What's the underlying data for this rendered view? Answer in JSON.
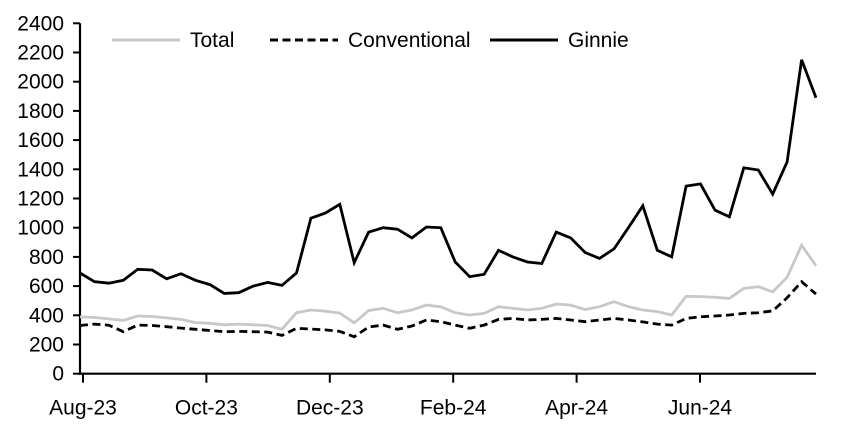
{
  "chart_data": {
    "type": "line",
    "title": "",
    "x_axis": {
      "tick_labels": [
        "Aug-23",
        "Oct-23",
        "Dec-23",
        "Feb-24",
        "Apr-24",
        "Jun-24"
      ],
      "unit": "week",
      "points_count": 52
    },
    "y_axis": {
      "ylim": [
        0,
        2400
      ],
      "tick_step": 200,
      "tick_labels": [
        "0",
        "200",
        "400",
        "600",
        "800",
        "1000",
        "1200",
        "1400",
        "1600",
        "1800",
        "2000",
        "2200",
        "2400"
      ]
    },
    "grid": false,
    "legend_position": "top",
    "series": [
      {
        "name": "Total",
        "style": "solid",
        "color": "#c8c8c8",
        "values": [
          390,
          385,
          375,
          365,
          395,
          392,
          382,
          372,
          350,
          345,
          335,
          340,
          335,
          330,
          305,
          418,
          436,
          428,
          415,
          348,
          432,
          448,
          418,
          436,
          470,
          458,
          418,
          402,
          413,
          459,
          448,
          436,
          448,
          477,
          470,
          440,
          459,
          493,
          459,
          436,
          425,
          402,
          530,
          528,
          523,
          516,
          585,
          596,
          560,
          660,
          880,
          740
        ]
      },
      {
        "name": "Conventional",
        "style": "dashed",
        "color": "#000000",
        "values": [
          330,
          340,
          332,
          288,
          333,
          330,
          322,
          312,
          304,
          296,
          288,
          290,
          288,
          285,
          262,
          310,
          306,
          300,
          290,
          253,
          320,
          333,
          304,
          327,
          368,
          356,
          333,
          311,
          333,
          372,
          379,
          368,
          372,
          379,
          368,
          356,
          368,
          379,
          368,
          355,
          340,
          333,
          379,
          390,
          395,
          402,
          413,
          418,
          430,
          520,
          630,
          545
        ]
      },
      {
        "name": "Ginnie",
        "style": "solid",
        "color": "#000000",
        "values": [
          690,
          630,
          620,
          640,
          715,
          710,
          650,
          685,
          640,
          610,
          550,
          555,
          600,
          625,
          605,
          690,
          1065,
          1100,
          1160,
          760,
          970,
          1000,
          990,
          930,
          1005,
          1000,
          765,
          665,
          680,
          845,
          800,
          765,
          755,
          970,
          930,
          830,
          790,
          855,
          1000,
          1150,
          845,
          800,
          1285,
          1300,
          1120,
          1075,
          1410,
          1395,
          1230,
          1450,
          2150,
          1890
        ]
      }
    ]
  },
  "colors": {
    "axis": "#000000",
    "background": "#ffffff",
    "total_line": "#c8c8c8",
    "black_line": "#000000"
  }
}
